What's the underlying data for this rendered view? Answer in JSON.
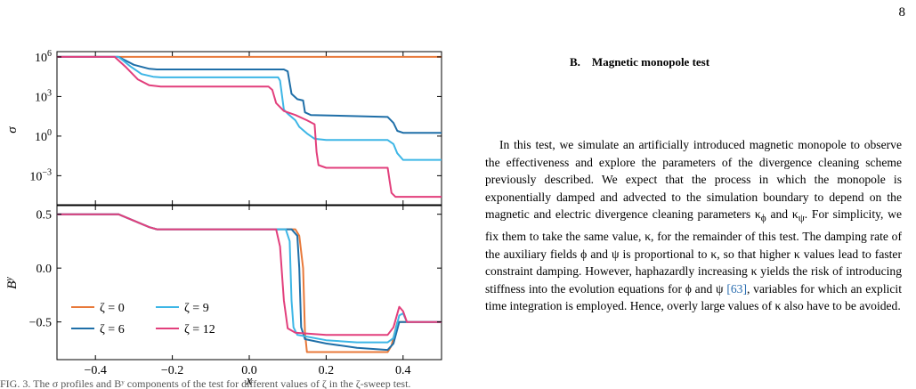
{
  "page": {
    "number": "8"
  },
  "section": {
    "heading": "B. Magnetic monopole test"
  },
  "paragraph": {
    "part1": "In this test, we simulate an artificially introduced magnetic monopole to observe the effectiveness and explore the parameters of the divergence cleaning scheme previously described. We expect that the process in which the monopole is exponentially damped and advected to the simulation boundary to depend on the magnetic and electric divergence cleaning parameters κ",
    "sub_phi": "ϕ",
    "part2": " and κ",
    "sub_psi": "ψ",
    "part3": ". For simplicity, we fix them to take the same value, κ, for the remainder of this test. The damping rate of the auxiliary fields ϕ and ψ is proportional to κ, so that higher κ values lead to faster constraint damping. However, haphazardly increasing κ yields the risk of introducing stiffness into the evolution equations for ϕ and ψ ",
    "citation": "[63]",
    "part4": ", variables for which an explicit time integration is employed. Hence, overly large values of κ also have to be avoided."
  },
  "caption_stub": "FIG. 3. The σ profiles and Bʸ components of the test for different values of ζ in the ζ-sweep test.",
  "colors": {
    "zeta0": "#e8793a",
    "zeta6": "#1f6fa8",
    "zeta9": "#3db6e6",
    "zeta12": "#e23f7c"
  },
  "chart_data": [
    {
      "type": "line",
      "panel": "top",
      "ylabel": "σ",
      "y_scale": "log",
      "xlim": [
        -0.5,
        0.5
      ],
      "ylim_log10": [
        -5.2,
        6.4
      ],
      "y_ticks": [
        {
          "value": 6,
          "label": "10",
          "exp": "6"
        },
        {
          "value": 3,
          "label": "10",
          "exp": "3"
        },
        {
          "value": 0,
          "label": "10",
          "exp": "0"
        },
        {
          "value": -3,
          "label": "10",
          "exp": "−3"
        }
      ],
      "grid": false,
      "series": [
        {
          "name": "ζ = 0",
          "color": "#e8793a",
          "points": [
            [
              -0.5,
              6
            ],
            [
              0.5,
              6
            ]
          ]
        },
        {
          "name": "ζ = 6",
          "color": "#1f6fa8",
          "points": [
            [
              -0.5,
              6
            ],
            [
              -0.34,
              6
            ],
            [
              -0.3,
              5.4
            ],
            [
              -0.26,
              5.1
            ],
            [
              -0.24,
              5.05
            ],
            [
              0.09,
              5.05
            ],
            [
              0.1,
              4.9
            ],
            [
              0.11,
              3.2
            ],
            [
              0.125,
              2.8
            ],
            [
              0.14,
              2.7
            ],
            [
              0.145,
              1.8
            ],
            [
              0.16,
              1.6
            ],
            [
              0.36,
              1.45
            ],
            [
              0.375,
              1.0
            ],
            [
              0.385,
              0.4
            ],
            [
              0.4,
              0.25
            ],
            [
              0.5,
              0.25
            ]
          ]
        },
        {
          "name": "ζ = 9",
          "color": "#3db6e6",
          "points": [
            [
              -0.5,
              6
            ],
            [
              -0.34,
              6
            ],
            [
              -0.31,
              5.3
            ],
            [
              -0.28,
              4.7
            ],
            [
              -0.25,
              4.5
            ],
            [
              -0.23,
              4.45
            ],
            [
              0.075,
              4.45
            ],
            [
              0.08,
              4.2
            ],
            [
              0.09,
              2.0
            ],
            [
              0.1,
              1.7
            ],
            [
              0.12,
              1.2
            ],
            [
              0.13,
              0.7
            ],
            [
              0.15,
              0.2
            ],
            [
              0.17,
              -0.2
            ],
            [
              0.2,
              -0.3
            ],
            [
              0.36,
              -0.3
            ],
            [
              0.375,
              -0.6
            ],
            [
              0.385,
              -1.3
            ],
            [
              0.4,
              -1.8
            ],
            [
              0.5,
              -1.8
            ]
          ]
        },
        {
          "name": "ζ = 12",
          "color": "#e23f7c",
          "points": [
            [
              -0.5,
              6
            ],
            [
              -0.35,
              6
            ],
            [
              -0.32,
              5.2
            ],
            [
              -0.29,
              4.3
            ],
            [
              -0.26,
              3.85
            ],
            [
              -0.23,
              3.75
            ],
            [
              0.05,
              3.75
            ],
            [
              0.06,
              3.5
            ],
            [
              0.07,
              2.5
            ],
            [
              0.09,
              1.9
            ],
            [
              0.12,
              1.6
            ],
            [
              0.15,
              1.2
            ],
            [
              0.17,
              0.9
            ],
            [
              0.175,
              -1.2
            ],
            [
              0.18,
              -2.2
            ],
            [
              0.2,
              -2.4
            ],
            [
              0.36,
              -2.4
            ],
            [
              0.365,
              -3.4
            ],
            [
              0.37,
              -4.3
            ],
            [
              0.38,
              -4.6
            ],
            [
              0.5,
              -4.6
            ]
          ]
        }
      ]
    },
    {
      "type": "line",
      "panel": "bottom",
      "ylabel": "B",
      "ylabel_sup": "y",
      "xlabel": "x",
      "xlim": [
        -0.5,
        0.5
      ],
      "ylim": [
        -0.85,
        0.58
      ],
      "x_ticks": [
        {
          "value": -0.4,
          "label": "−0.4"
        },
        {
          "value": -0.2,
          "label": "−0.2"
        },
        {
          "value": 0.0,
          "label": "0.0"
        },
        {
          "value": 0.2,
          "label": "0.2"
        },
        {
          "value": 0.4,
          "label": "0.4"
        }
      ],
      "y_ticks": [
        {
          "value": 0.5,
          "label": "0.5"
        },
        {
          "value": 0.0,
          "label": "0.0"
        },
        {
          "value": -0.5,
          "label": "−0.5"
        }
      ],
      "grid": false,
      "legend_placement": "lower-left",
      "series": [
        {
          "name": "ζ = 0",
          "color": "#e8793a",
          "points": [
            [
              -0.5,
              0.5
            ],
            [
              -0.34,
              0.5
            ],
            [
              -0.3,
              0.44
            ],
            [
              -0.26,
              0.38
            ],
            [
              -0.24,
              0.36
            ],
            [
              0.12,
              0.36
            ],
            [
              0.13,
              0.3
            ],
            [
              0.14,
              0.0
            ],
            [
              0.145,
              -0.6
            ],
            [
              0.15,
              -0.78
            ],
            [
              0.36,
              -0.78
            ],
            [
              0.37,
              -0.72
            ],
            [
              0.385,
              -0.5
            ],
            [
              0.4,
              -0.5
            ],
            [
              0.5,
              -0.5
            ]
          ]
        },
        {
          "name": "ζ = 6",
          "color": "#1f6fa8",
          "points": [
            [
              -0.5,
              0.5
            ],
            [
              -0.34,
              0.5
            ],
            [
              -0.3,
              0.44
            ],
            [
              -0.26,
              0.38
            ],
            [
              -0.24,
              0.36
            ],
            [
              0.11,
              0.36
            ],
            [
              0.125,
              0.3
            ],
            [
              0.13,
              0.0
            ],
            [
              0.135,
              -0.55
            ],
            [
              0.145,
              -0.66
            ],
            [
              0.2,
              -0.7
            ],
            [
              0.28,
              -0.74
            ],
            [
              0.36,
              -0.76
            ],
            [
              0.375,
              -0.7
            ],
            [
              0.39,
              -0.5
            ],
            [
              0.41,
              -0.5
            ],
            [
              0.5,
              -0.5
            ]
          ]
        },
        {
          "name": "ζ = 9",
          "color": "#3db6e6",
          "points": [
            [
              -0.5,
              0.5
            ],
            [
              -0.34,
              0.5
            ],
            [
              -0.3,
              0.44
            ],
            [
              -0.26,
              0.38
            ],
            [
              -0.24,
              0.36
            ],
            [
              0.095,
              0.36
            ],
            [
              0.105,
              0.25
            ],
            [
              0.11,
              -0.3
            ],
            [
              0.115,
              -0.55
            ],
            [
              0.125,
              -0.62
            ],
            [
              0.2,
              -0.67
            ],
            [
              0.28,
              -0.69
            ],
            [
              0.36,
              -0.69
            ],
            [
              0.375,
              -0.65
            ],
            [
              0.39,
              -0.44
            ],
            [
              0.4,
              -0.42
            ],
            [
              0.41,
              -0.5
            ],
            [
              0.5,
              -0.5
            ]
          ]
        },
        {
          "name": "ζ = 12",
          "color": "#e23f7c",
          "points": [
            [
              -0.5,
              0.5
            ],
            [
              -0.34,
              0.5
            ],
            [
              -0.3,
              0.44
            ],
            [
              -0.26,
              0.38
            ],
            [
              -0.24,
              0.36
            ],
            [
              0.07,
              0.36
            ],
            [
              0.08,
              0.2
            ],
            [
              0.09,
              -0.3
            ],
            [
              0.1,
              -0.56
            ],
            [
              0.12,
              -0.6
            ],
            [
              0.2,
              -0.62
            ],
            [
              0.36,
              -0.62
            ],
            [
              0.375,
              -0.55
            ],
            [
              0.39,
              -0.36
            ],
            [
              0.4,
              -0.4
            ],
            [
              0.41,
              -0.5
            ],
            [
              0.5,
              -0.5
            ]
          ]
        }
      ]
    }
  ]
}
